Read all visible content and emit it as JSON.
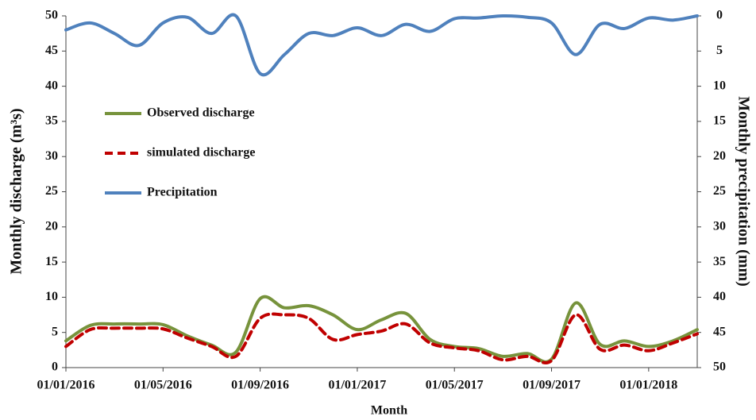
{
  "chart_data": {
    "type": "line",
    "xlabel": "Month",
    "ylabel": "Monthly discharge (m³s)",
    "y2label": "Monthly precipitation (mm)",
    "categories": [
      "01/01/2016",
      null,
      null,
      null,
      "01/05/2016",
      null,
      null,
      null,
      "01/09/2016",
      null,
      null,
      null,
      "01/01/2017",
      null,
      null,
      null,
      "01/05/2017",
      null,
      null,
      null,
      "01/09/2017",
      null,
      null,
      null,
      "01/01/2018",
      null,
      null
    ],
    "ylim": [
      0,
      50
    ],
    "yticks": [
      0,
      5,
      10,
      15,
      20,
      25,
      30,
      35,
      40,
      45,
      50
    ],
    "y2lim": [
      50,
      0
    ],
    "y2ticks": [
      0,
      5,
      10,
      15,
      20,
      25,
      30,
      35,
      40,
      45,
      50
    ],
    "series": [
      {
        "name": "Observed discharge",
        "color": "#77933c",
        "style": "solid",
        "values": [
          3.8,
          6.0,
          6.2,
          6.2,
          6.1,
          4.5,
          3.2,
          2.2,
          9.8,
          8.5,
          8.8,
          7.5,
          5.4,
          6.8,
          7.7,
          4.0,
          3.0,
          2.7,
          1.6,
          2.0,
          1.2,
          9.2,
          3.3,
          3.8,
          3.0,
          3.8,
          5.4
        ]
      },
      {
        "name": "simulated discharge",
        "color": "#c00000",
        "style": "dashed",
        "values": [
          3.0,
          5.4,
          5.6,
          5.6,
          5.5,
          4.2,
          3.0,
          1.6,
          7.0,
          7.5,
          7.0,
          4.0,
          4.7,
          5.2,
          6.2,
          3.5,
          2.8,
          2.4,
          1.1,
          1.6,
          1.0,
          7.5,
          2.6,
          3.2,
          2.4,
          3.5,
          4.8
        ]
      },
      {
        "name": "Precipitation",
        "color": "#4f81bd",
        "style": "solid",
        "axis": "y2",
        "values": [
          2.0,
          1.0,
          2.5,
          4.2,
          1.0,
          0.2,
          2.5,
          0.0,
          8.2,
          5.5,
          2.5,
          2.8,
          1.7,
          2.8,
          1.2,
          2.2,
          0.4,
          0.3,
          0.0,
          0.2,
          1.0,
          5.5,
          1.2,
          1.8,
          0.3,
          0.6,
          0.0
        ]
      }
    ]
  }
}
